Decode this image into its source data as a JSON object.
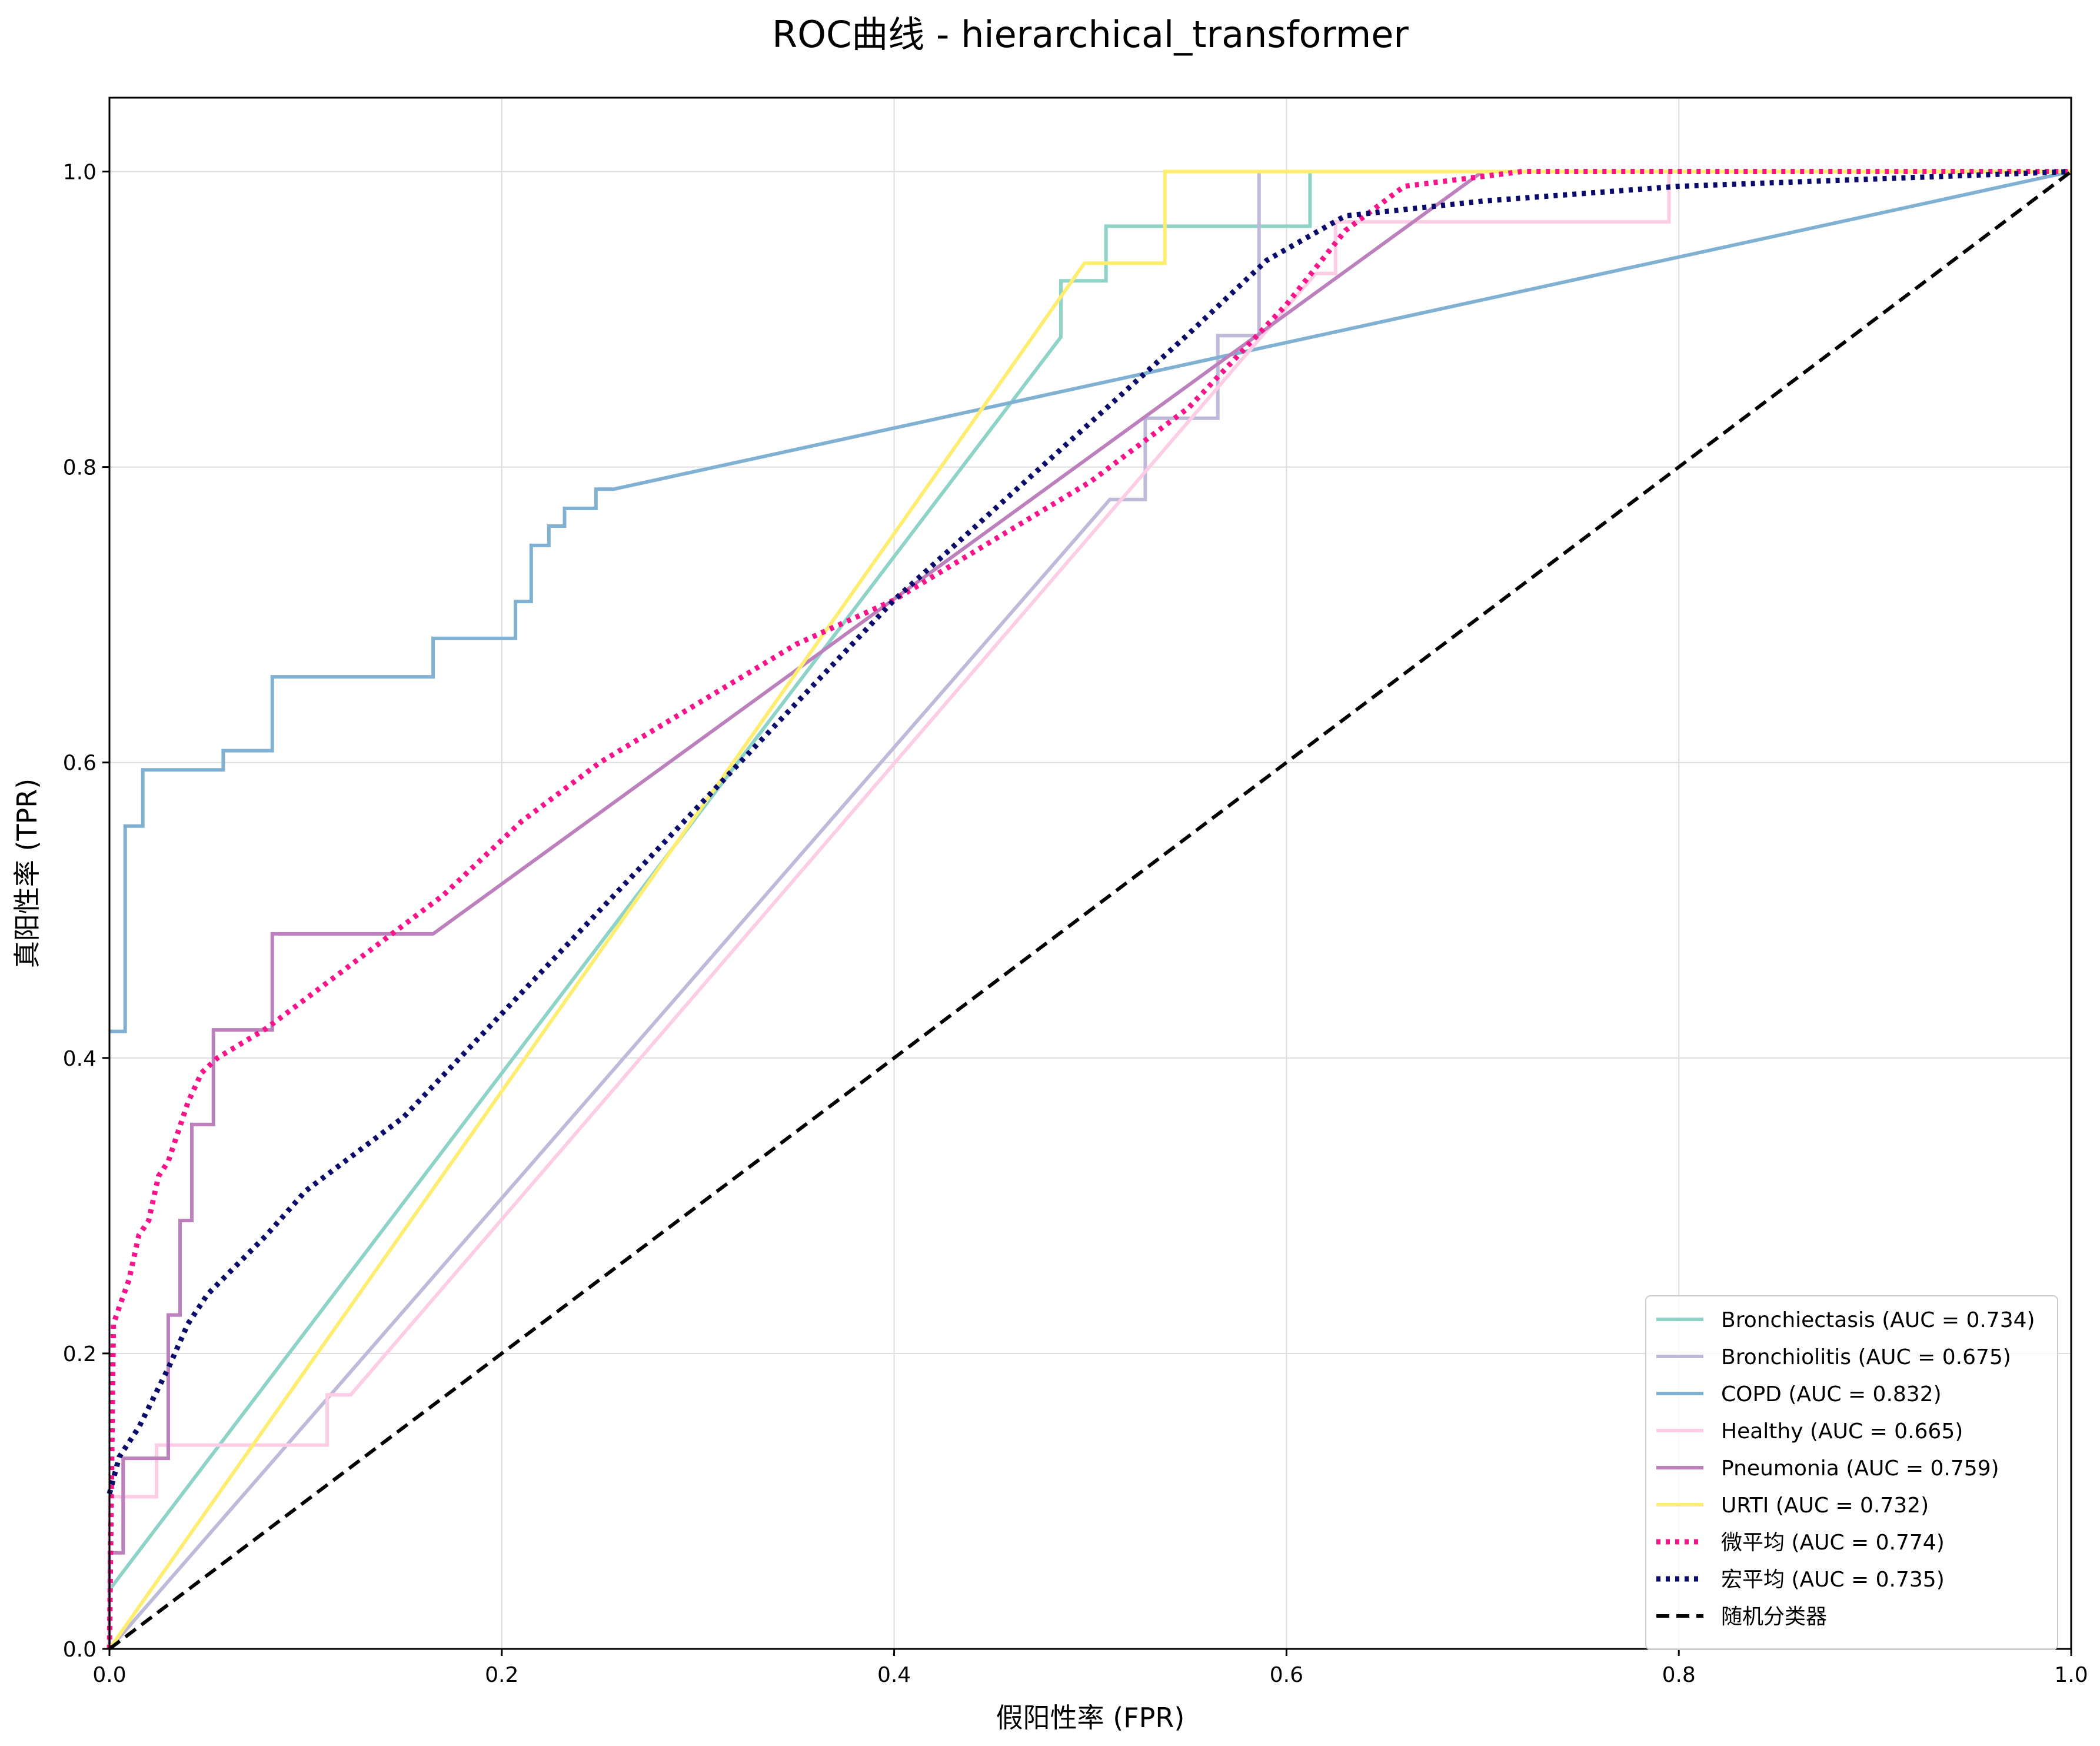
{
  "chart_data": {
    "type": "line",
    "title": "ROC曲线 - hierarchical_transformer",
    "xlabel": "假阳性率 (FPR)",
    "ylabel": "真阳性率 (TPR)",
    "xlim": [
      0,
      1
    ],
    "ylim": [
      0,
      1.05
    ],
    "xticks": [
      "0.0",
      "0.2",
      "0.4",
      "0.6",
      "0.8",
      "1.0"
    ],
    "yticks": [
      "0.0",
      "0.2",
      "0.4",
      "0.6",
      "0.8",
      "1.0"
    ],
    "grid": true,
    "legend_position": "lower-right",
    "series": [
      {
        "name": "Bronchiectasis (AUC = 0.734)",
        "color": "#8dd3c7",
        "style": "solid",
        "points": [
          [
            0,
            0
          ],
          [
            0,
            0.04
          ],
          [
            0.485,
            0.888
          ],
          [
            0.485,
            0.926
          ],
          [
            0.508,
            0.926
          ],
          [
            0.508,
            0.963
          ],
          [
            0.612,
            0.963
          ],
          [
            0.612,
            1
          ],
          [
            1,
            1
          ]
        ]
      },
      {
        "name": "Bronchiolitis (AUC = 0.675)",
        "color": "#bebada",
        "style": "solid",
        "points": [
          [
            0,
            0
          ],
          [
            0.51,
            0.778
          ],
          [
            0.528,
            0.778
          ],
          [
            0.528,
            0.833
          ],
          [
            0.565,
            0.833
          ],
          [
            0.565,
            0.889
          ],
          [
            0.586,
            0.889
          ],
          [
            0.586,
            1
          ],
          [
            1,
            1
          ]
        ]
      },
      {
        "name": "COPD (AUC = 0.832)",
        "color": "#80b1d3",
        "style": "solid",
        "points": [
          [
            0,
            0.418
          ],
          [
            0.008,
            0.418
          ],
          [
            0.008,
            0.557
          ],
          [
            0.017,
            0.557
          ],
          [
            0.017,
            0.595
          ],
          [
            0.058,
            0.595
          ],
          [
            0.058,
            0.608
          ],
          [
            0.083,
            0.608
          ],
          [
            0.083,
            0.658
          ],
          [
            0.165,
            0.658
          ],
          [
            0.165,
            0.684
          ],
          [
            0.207,
            0.684
          ],
          [
            0.207,
            0.709
          ],
          [
            0.215,
            0.709
          ],
          [
            0.215,
            0.747
          ],
          [
            0.224,
            0.747
          ],
          [
            0.224,
            0.76
          ],
          [
            0.232,
            0.76
          ],
          [
            0.232,
            0.772
          ],
          [
            0.248,
            0.772
          ],
          [
            0.248,
            0.785
          ],
          [
            0.257,
            0.785
          ],
          [
            1,
            1
          ]
        ]
      },
      {
        "name": "Healthy (AUC = 0.665)",
        "color": "#fccde5",
        "style": "solid",
        "points": [
          [
            0,
            0
          ],
          [
            0,
            0.103
          ],
          [
            0.024,
            0.103
          ],
          [
            0.024,
            0.138
          ],
          [
            0.111,
            0.138
          ],
          [
            0.111,
            0.172
          ],
          [
            0.123,
            0.172
          ],
          [
            0.615,
            0.931
          ],
          [
            0.625,
            0.931
          ],
          [
            0.625,
            0.966
          ],
          [
            0.795,
            0.966
          ],
          [
            0.795,
            1
          ],
          [
            1,
            1
          ]
        ]
      },
      {
        "name": "Pneumonia (AUC = 0.759)",
        "color": "#bc80bd",
        "style": "solid",
        "points": [
          [
            0,
            0
          ],
          [
            0,
            0.065
          ],
          [
            0.007,
            0.065
          ],
          [
            0.007,
            0.129
          ],
          [
            0.03,
            0.129
          ],
          [
            0.03,
            0.226
          ],
          [
            0.036,
            0.226
          ],
          [
            0.036,
            0.29
          ],
          [
            0.042,
            0.29
          ],
          [
            0.042,
            0.355
          ],
          [
            0.053,
            0.355
          ],
          [
            0.053,
            0.419
          ],
          [
            0.083,
            0.419
          ],
          [
            0.083,
            0.484
          ],
          [
            0.165,
            0.484
          ],
          [
            0.7,
            1
          ],
          [
            1,
            1
          ]
        ]
      },
      {
        "name": "URTI (AUC = 0.732)",
        "color": "#ffed6f",
        "style": "solid",
        "points": [
          [
            0,
            0
          ],
          [
            0.497,
            0.938
          ],
          [
            0.538,
            0.938
          ],
          [
            0.538,
            1
          ],
          [
            1,
            1
          ]
        ]
      },
      {
        "name": "微平均 (AUC = 0.774)",
        "color": "#f7148a",
        "style": "dotted",
        "points": [
          [
            0,
            0
          ],
          [
            0.002,
            0.22
          ],
          [
            0.01,
            0.25
          ],
          [
            0.015,
            0.28
          ],
          [
            0.02,
            0.29
          ],
          [
            0.025,
            0.32
          ],
          [
            0.03,
            0.33
          ],
          [
            0.035,
            0.35
          ],
          [
            0.04,
            0.37
          ],
          [
            0.047,
            0.39
          ],
          [
            0.055,
            0.4
          ],
          [
            0.08,
            0.42
          ],
          [
            0.12,
            0.46
          ],
          [
            0.17,
            0.51
          ],
          [
            0.21,
            0.56
          ],
          [
            0.25,
            0.6
          ],
          [
            0.3,
            0.64
          ],
          [
            0.35,
            0.68
          ],
          [
            0.4,
            0.71
          ],
          [
            0.45,
            0.75
          ],
          [
            0.5,
            0.79
          ],
          [
            0.55,
            0.84
          ],
          [
            0.6,
            0.91
          ],
          [
            0.63,
            0.96
          ],
          [
            0.66,
            0.99
          ],
          [
            0.72,
            1
          ],
          [
            1,
            1
          ]
        ]
      },
      {
        "name": "宏平均 (AUC = 0.735)",
        "color": "#0b0b6e",
        "style": "dotted",
        "points": [
          [
            0,
            0.105
          ],
          [
            0.005,
            0.13
          ],
          [
            0.015,
            0.15
          ],
          [
            0.03,
            0.19
          ],
          [
            0.04,
            0.22
          ],
          [
            0.05,
            0.24
          ],
          [
            0.08,
            0.28
          ],
          [
            0.1,
            0.31
          ],
          [
            0.15,
            0.36
          ],
          [
            0.2,
            0.43
          ],
          [
            0.25,
            0.5
          ],
          [
            0.3,
            0.57
          ],
          [
            0.35,
            0.64
          ],
          [
            0.4,
            0.71
          ],
          [
            0.45,
            0.77
          ],
          [
            0.5,
            0.83
          ],
          [
            0.55,
            0.89
          ],
          [
            0.59,
            0.94
          ],
          [
            0.63,
            0.97
          ],
          [
            0.7,
            0.98
          ],
          [
            0.8,
            0.99
          ],
          [
            0.9,
            0.995
          ],
          [
            1,
            1
          ]
        ]
      },
      {
        "name": "随机分类器",
        "color": "#000000",
        "style": "dashed",
        "points": [
          [
            0,
            0
          ],
          [
            1,
            1
          ]
        ]
      }
    ]
  }
}
